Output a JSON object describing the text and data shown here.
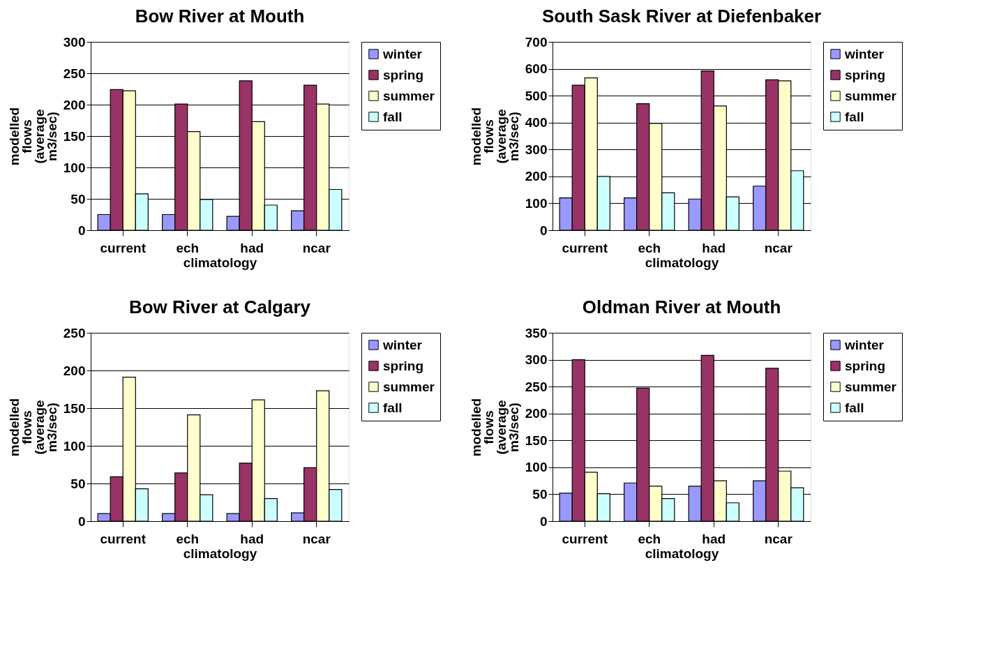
{
  "chart_data": [
    {
      "type": "bar",
      "title": "Bow River at Mouth",
      "xlabel": "climatology",
      "ylabel": "modelled flows (average m3/sec)",
      "categories": [
        "current",
        "ech",
        "had",
        "ncar"
      ],
      "ylim": [
        0,
        300
      ],
      "yticks": [
        0,
        50,
        100,
        150,
        200,
        250,
        300
      ],
      "grid": "y",
      "legend": "right",
      "series": [
        {
          "name": "winter",
          "color": "#9999ff",
          "values": [
            25,
            25,
            22,
            31
          ]
        },
        {
          "name": "spring",
          "color": "#993366",
          "values": [
            224,
            201,
            238,
            231
          ]
        },
        {
          "name": "summer",
          "color": "#ffffcc",
          "values": [
            222,
            157,
            173,
            201
          ]
        },
        {
          "name": "fall",
          "color": "#ccffff",
          "values": [
            58,
            49,
            40,
            65
          ]
        }
      ]
    },
    {
      "type": "bar",
      "title": "South Sask River at Diefenbaker",
      "xlabel": "climatology",
      "ylabel": "modelled flows (average m3/sec)",
      "categories": [
        "current",
        "ech",
        "had",
        "ncar"
      ],
      "ylim": [
        0,
        700
      ],
      "yticks": [
        0,
        100,
        200,
        300,
        400,
        500,
        600,
        700
      ],
      "grid": "y",
      "legend": "right",
      "series": [
        {
          "name": "winter",
          "color": "#9999ff",
          "values": [
            120,
            120,
            116,
            164
          ]
        },
        {
          "name": "spring",
          "color": "#993366",
          "values": [
            539,
            470,
            592,
            559
          ]
        },
        {
          "name": "summer",
          "color": "#ffffcc",
          "values": [
            566,
            397,
            462,
            555
          ]
        },
        {
          "name": "fall",
          "color": "#ccffff",
          "values": [
            200,
            139,
            124,
            221
          ]
        }
      ]
    },
    {
      "type": "bar",
      "title": "Bow River at Calgary",
      "xlabel": "climatology",
      "ylabel": "modelled flows (average m3/sec)",
      "categories": [
        "current",
        "ech",
        "had",
        "ncar"
      ],
      "ylim": [
        0,
        250
      ],
      "yticks": [
        0,
        50,
        100,
        150,
        200,
        250
      ],
      "grid": "y",
      "legend": "right",
      "series": [
        {
          "name": "winter",
          "color": "#9999ff",
          "values": [
            10,
            10,
            10,
            11
          ]
        },
        {
          "name": "spring",
          "color": "#993366",
          "values": [
            59,
            64,
            77,
            71
          ]
        },
        {
          "name": "summer",
          "color": "#ffffcc",
          "values": [
            191,
            141,
            161,
            173
          ]
        },
        {
          "name": "fall",
          "color": "#ccffff",
          "values": [
            43,
            35,
            30,
            42
          ]
        }
      ]
    },
    {
      "type": "bar",
      "title": "Oldman River at Mouth",
      "xlabel": "climatology",
      "ylabel": "modelled flows (average m3/sec)",
      "categories": [
        "current",
        "ech",
        "had",
        "ncar"
      ],
      "ylim": [
        0,
        350
      ],
      "yticks": [
        0,
        50,
        100,
        150,
        200,
        250,
        300,
        350
      ],
      "grid": "y",
      "legend": "right",
      "series": [
        {
          "name": "winter",
          "color": "#9999ff",
          "values": [
            52,
            71,
            65,
            75
          ]
        },
        {
          "name": "spring",
          "color": "#993366",
          "values": [
            300,
            247,
            308,
            284
          ]
        },
        {
          "name": "summer",
          "color": "#ffffcc",
          "values": [
            91,
            65,
            75,
            93
          ]
        },
        {
          "name": "fall",
          "color": "#ccffff",
          "values": [
            51,
            42,
            34,
            62
          ]
        }
      ]
    }
  ]
}
